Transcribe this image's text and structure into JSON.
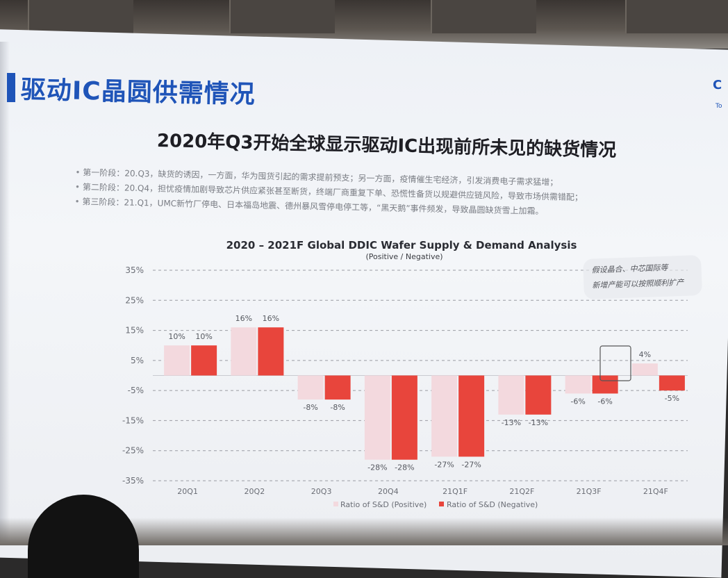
{
  "slide": {
    "title": "驱动IC晶圆供需情况",
    "headline": "2020年Q3开始全球显示驱动IC出现前所未见的缺货情况",
    "bullets": [
      "第一阶段：20.Q3，缺货的诱因，一方面，华为囤货引起的需求提前预支；另一方面，疫情催生宅经济，引发消费电子需求猛增；",
      "第二阶段：20.Q4，担忧疫情加剧导致芯片供应紧张甚至断货，终端厂商重复下单、恐慌性备货以规避供应链风险，导致市场供需错配；",
      "第三阶段：21.Q1，UMC新竹厂停电、日本福岛地震、德州暴风雪停电停工等，“黑天鹅”事件频发，导致晶圆缺货雪上加霜。"
    ],
    "brand_glyph": "C",
    "brand_text": "To"
  },
  "annotation": {
    "lines": [
      "假设晶合、中芯国际等",
      "新增产能可以按照顺利扩产"
    ]
  },
  "colors": {
    "positive": "#f3d9de",
    "negative": "#e8453c",
    "title_blue": "#1f54b8"
  },
  "chart_data": {
    "type": "bar",
    "title": "2020 – 2021F Global DDIC Wafer Supply & Demand Analysis",
    "subtitle": "(Positive / Negative)",
    "categories": [
      "20Q1",
      "20Q2",
      "20Q3",
      "20Q4",
      "21Q1F",
      "21Q2F",
      "21Q3F",
      "21Q4F"
    ],
    "series": [
      {
        "name": "Ratio of S&D (Positive)",
        "values": [
          10,
          16,
          -8,
          -28,
          -27,
          -13,
          -6,
          4
        ]
      },
      {
        "name": "Ratio of S&D (Negative)",
        "values": [
          10,
          16,
          -8,
          -28,
          -27,
          -13,
          -6,
          -5
        ]
      }
    ],
    "labels": [
      [
        "10%",
        "16%",
        "-8%",
        "-28%",
        "-27%",
        "-13%",
        "-6%",
        "4%"
      ],
      [
        "10%",
        "16%",
        "-8%",
        "-28%",
        "-27%",
        "-13%",
        "-6%",
        "-5%"
      ]
    ],
    "ylim": [
      -35,
      35
    ],
    "yticks": [
      35,
      25,
      15,
      5,
      -5,
      -15,
      -25,
      -35
    ],
    "ytick_labels": [
      "35%",
      "25%",
      "15%",
      "5%",
      "-5%",
      "-15%",
      "-25%",
      "-35%"
    ],
    "grid": true,
    "legend": "bottom"
  }
}
